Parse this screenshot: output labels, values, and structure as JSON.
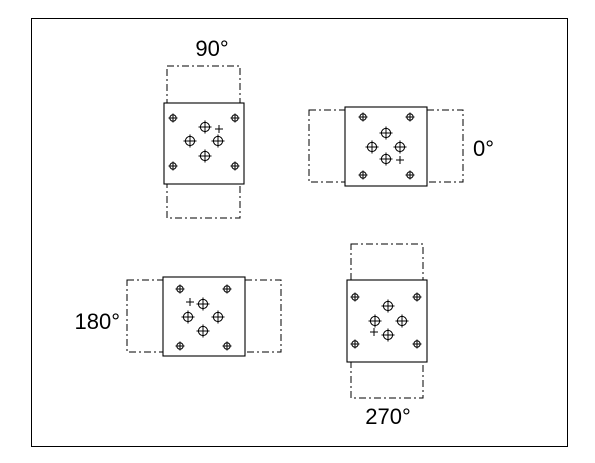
{
  "orientations": [
    {
      "id": "ori-90",
      "label": "90°"
    },
    {
      "id": "ori-0",
      "label": "0°"
    },
    {
      "id": "ori-180",
      "label": "180°"
    },
    {
      "id": "ori-270",
      "label": "270°"
    }
  ],
  "colors": {
    "line": "#000000",
    "background": "#ffffff"
  }
}
